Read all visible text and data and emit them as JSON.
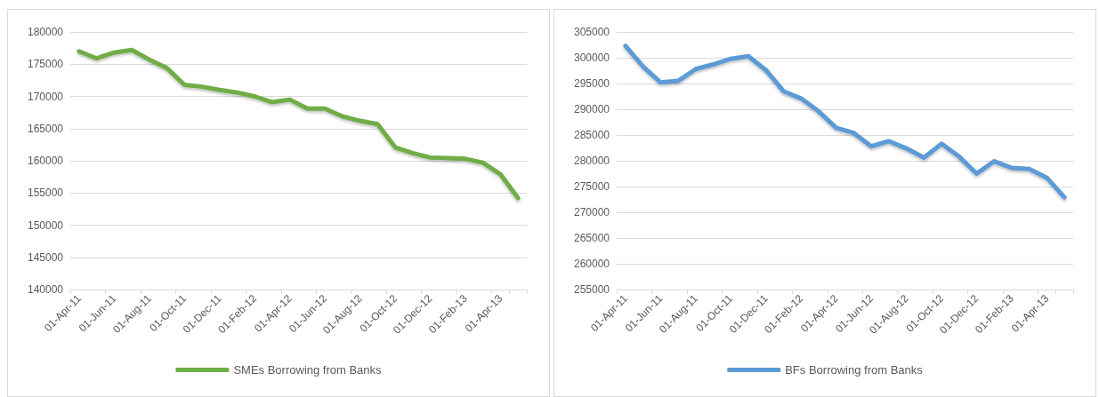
{
  "chart_data": [
    {
      "type": "line",
      "categories": [
        "01-Apr-11",
        null,
        "01-Jun-11",
        null,
        "01-Aug-11",
        null,
        "01-Oct-11",
        null,
        "01-Dec-11",
        null,
        "01-Feb-12",
        null,
        "01-Apr-12",
        null,
        "01-Jun-12",
        null,
        "01-Aug-12",
        null,
        "01-Oct-12",
        null,
        "01-Dec-12",
        null,
        "01-Feb-13",
        null,
        "01-Apr-13",
        null
      ],
      "series": [
        {
          "name": "SMEs Borrowing from Banks",
          "color": "#70ad47",
          "values": [
            177000,
            175900,
            176800,
            177200,
            175700,
            174400,
            171800,
            171500,
            171000,
            170600,
            170000,
            169100,
            169500,
            168100,
            168100,
            166900,
            166200,
            165700,
            162100,
            161200,
            160500,
            160400,
            160300,
            159700,
            157900,
            154200
          ]
        }
      ],
      "ylim": [
        140000,
        180000
      ],
      "yticks": [
        140000,
        145000,
        150000,
        155000,
        160000,
        165000,
        170000,
        175000,
        180000
      ],
      "grid": "y",
      "legend": "bottom",
      "marker": "none",
      "line_style": "solid"
    },
    {
      "type": "line",
      "categories": [
        "01-Apr-11",
        null,
        "01-Jun-11",
        null,
        "01-Aug-11",
        null,
        "01-Oct-11",
        null,
        "01-Dec-11",
        null,
        "01-Feb-12",
        null,
        "01-Apr-12",
        null,
        "01-Jun-12",
        null,
        "01-Aug-12",
        null,
        "01-Oct-12",
        null,
        "01-Dec-12",
        null,
        "01-Feb-13",
        null,
        "01-Apr-13",
        null
      ],
      "series": [
        {
          "name": "BFs Borrowing from Banks",
          "color": "#5b9bd5",
          "values": [
            302300,
            298300,
            295200,
            295500,
            297800,
            298700,
            299800,
            300300,
            297600,
            293500,
            292100,
            289600,
            286400,
            285400,
            282800,
            283800,
            282400,
            280600,
            283300,
            280800,
            277500,
            279900,
            278600,
            278400,
            276700,
            272900
          ]
        }
      ],
      "ylim": [
        255000,
        305000
      ],
      "yticks": [
        255000,
        260000,
        265000,
        270000,
        275000,
        280000,
        285000,
        290000,
        295000,
        300000,
        305000
      ],
      "grid": "y",
      "legend": "bottom",
      "marker": "none",
      "line_style": "solid"
    }
  ]
}
